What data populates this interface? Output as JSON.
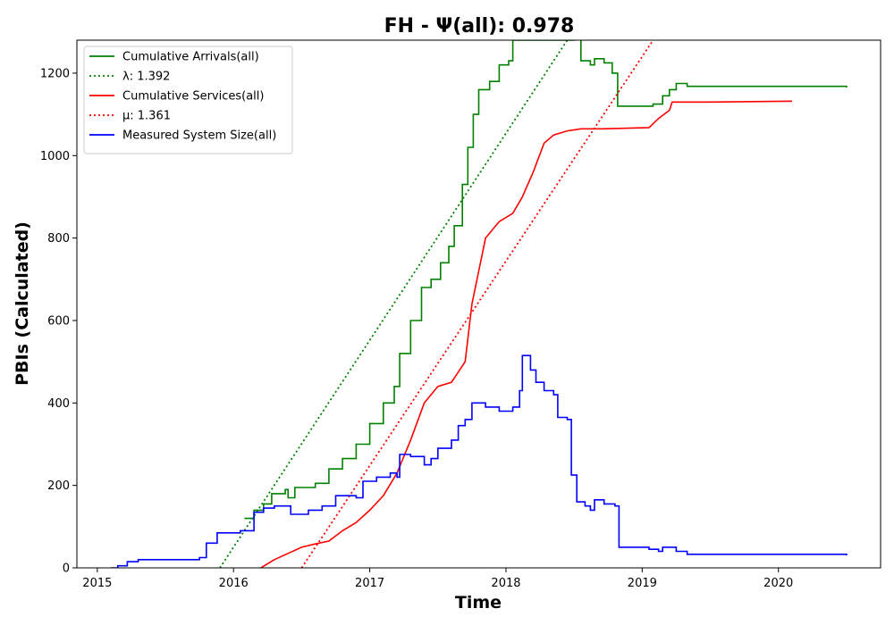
{
  "chart_data": {
    "type": "line",
    "title": "FH -  Ψ(all): 0.978",
    "xlabel": "Time",
    "ylabel": "PBIs (Calculated)",
    "xlim": [
      2014.85,
      2020.75
    ],
    "ylim": [
      0,
      1280
    ],
    "xticks": [
      2015,
      2016,
      2017,
      2018,
      2019,
      2020
    ],
    "xtick_labels": [
      "2015",
      "2016",
      "2017",
      "2018",
      "2019",
      "2020"
    ],
    "yticks": [
      0,
      200,
      400,
      600,
      800,
      1000,
      1200
    ],
    "ytick_labels": [
      "0",
      "200",
      "400",
      "600",
      "800",
      "1000",
      "1200"
    ],
    "grid": false,
    "legend_position": "top-left",
    "series": [
      {
        "name": "Cumulative Arrivals(all)",
        "color": "#008000",
        "style": "solid",
        "step": true,
        "points": [
          [
            2016.08,
            120
          ],
          [
            2016.15,
            140
          ],
          [
            2016.22,
            155
          ],
          [
            2016.28,
            180
          ],
          [
            2016.38,
            190
          ],
          [
            2016.4,
            170
          ],
          [
            2016.45,
            195
          ],
          [
            2016.6,
            205
          ],
          [
            2016.7,
            240
          ],
          [
            2016.8,
            265
          ],
          [
            2016.9,
            300
          ],
          [
            2017.0,
            350
          ],
          [
            2017.1,
            400
          ],
          [
            2017.18,
            440
          ],
          [
            2017.22,
            520
          ],
          [
            2017.3,
            600
          ],
          [
            2017.38,
            680
          ],
          [
            2017.45,
            700
          ],
          [
            2017.52,
            740
          ],
          [
            2017.58,
            780
          ],
          [
            2017.62,
            830
          ],
          [
            2017.68,
            930
          ],
          [
            2017.72,
            1020
          ],
          [
            2017.76,
            1100
          ],
          [
            2017.8,
            1160
          ],
          [
            2017.88,
            1180
          ],
          [
            2017.95,
            1220
          ],
          [
            2018.02,
            1230
          ],
          [
            2018.05,
            1280
          ],
          [
            2018.5,
            1290
          ],
          [
            2018.55,
            1230
          ],
          [
            2018.62,
            1220
          ],
          [
            2018.65,
            1235
          ],
          [
            2018.72,
            1225
          ],
          [
            2018.78,
            1200
          ],
          [
            2018.82,
            1120
          ],
          [
            2019.0,
            1120
          ],
          [
            2019.08,
            1125
          ],
          [
            2019.15,
            1145
          ],
          [
            2019.2,
            1160
          ],
          [
            2019.25,
            1175
          ],
          [
            2019.33,
            1168
          ],
          [
            2020.5,
            1165
          ]
        ]
      },
      {
        "name": "λ: 1.392",
        "color": "#008000",
        "style": "dotted",
        "step": false,
        "points": [
          [
            2015.9,
            0
          ],
          [
            2018.45,
            1280
          ]
        ]
      },
      {
        "name": "Cumulative Services(all)",
        "color": "#ff0000",
        "style": "solid",
        "step": false,
        "points": [
          [
            2016.2,
            0
          ],
          [
            2016.3,
            20
          ],
          [
            2016.4,
            35
          ],
          [
            2016.5,
            50
          ],
          [
            2016.6,
            58
          ],
          [
            2016.7,
            65
          ],
          [
            2016.8,
            90
          ],
          [
            2016.9,
            110
          ],
          [
            2017.0,
            140
          ],
          [
            2017.1,
            175
          ],
          [
            2017.2,
            230
          ],
          [
            2017.3,
            310
          ],
          [
            2017.4,
            400
          ],
          [
            2017.5,
            440
          ],
          [
            2017.6,
            450
          ],
          [
            2017.7,
            500
          ],
          [
            2017.75,
            640
          ],
          [
            2017.8,
            720
          ],
          [
            2017.85,
            800
          ],
          [
            2017.95,
            840
          ],
          [
            2018.05,
            860
          ],
          [
            2018.12,
            900
          ],
          [
            2018.2,
            960
          ],
          [
            2018.28,
            1030
          ],
          [
            2018.35,
            1050
          ],
          [
            2018.45,
            1060
          ],
          [
            2018.55,
            1065
          ],
          [
            2018.7,
            1065
          ],
          [
            2019.05,
            1068
          ],
          [
            2019.12,
            1090
          ],
          [
            2019.2,
            1110
          ],
          [
            2019.22,
            1130
          ],
          [
            2019.5,
            1130
          ],
          [
            2020.1,
            1132
          ]
        ]
      },
      {
        "name": "μ: 1.361",
        "color": "#ff0000",
        "style": "dotted",
        "step": false,
        "points": [
          [
            2016.5,
            0
          ],
          [
            2019.08,
            1280
          ]
        ]
      },
      {
        "name": "Measured System Size(all)",
        "color": "#0000ff",
        "style": "solid",
        "step": true,
        "points": [
          [
            2015.1,
            0
          ],
          [
            2015.15,
            5
          ],
          [
            2015.22,
            15
          ],
          [
            2015.3,
            20
          ],
          [
            2015.75,
            25
          ],
          [
            2015.8,
            60
          ],
          [
            2015.88,
            85
          ],
          [
            2016.05,
            90
          ],
          [
            2016.15,
            135
          ],
          [
            2016.22,
            145
          ],
          [
            2016.3,
            150
          ],
          [
            2016.42,
            130
          ],
          [
            2016.55,
            140
          ],
          [
            2016.65,
            150
          ],
          [
            2016.75,
            175
          ],
          [
            2016.9,
            170
          ],
          [
            2016.95,
            210
          ],
          [
            2017.05,
            220
          ],
          [
            2017.15,
            230
          ],
          [
            2017.2,
            220
          ],
          [
            2017.22,
            275
          ],
          [
            2017.3,
            270
          ],
          [
            2017.4,
            250
          ],
          [
            2017.45,
            265
          ],
          [
            2017.5,
            290
          ],
          [
            2017.6,
            310
          ],
          [
            2017.65,
            345
          ],
          [
            2017.7,
            360
          ],
          [
            2017.75,
            400
          ],
          [
            2017.85,
            390
          ],
          [
            2017.95,
            380
          ],
          [
            2018.05,
            390
          ],
          [
            2018.1,
            430
          ],
          [
            2018.12,
            515
          ],
          [
            2018.18,
            480
          ],
          [
            2018.22,
            450
          ],
          [
            2018.28,
            430
          ],
          [
            2018.35,
            420
          ],
          [
            2018.38,
            365
          ],
          [
            2018.45,
            360
          ],
          [
            2018.48,
            225
          ],
          [
            2018.52,
            160
          ],
          [
            2018.58,
            150
          ],
          [
            2018.62,
            140
          ],
          [
            2018.65,
            165
          ],
          [
            2018.72,
            155
          ],
          [
            2018.8,
            150
          ],
          [
            2018.83,
            50
          ],
          [
            2019.05,
            45
          ],
          [
            2019.12,
            40
          ],
          [
            2019.15,
            50
          ],
          [
            2019.25,
            40
          ],
          [
            2019.33,
            33
          ],
          [
            2020.5,
            30
          ]
        ]
      }
    ]
  }
}
